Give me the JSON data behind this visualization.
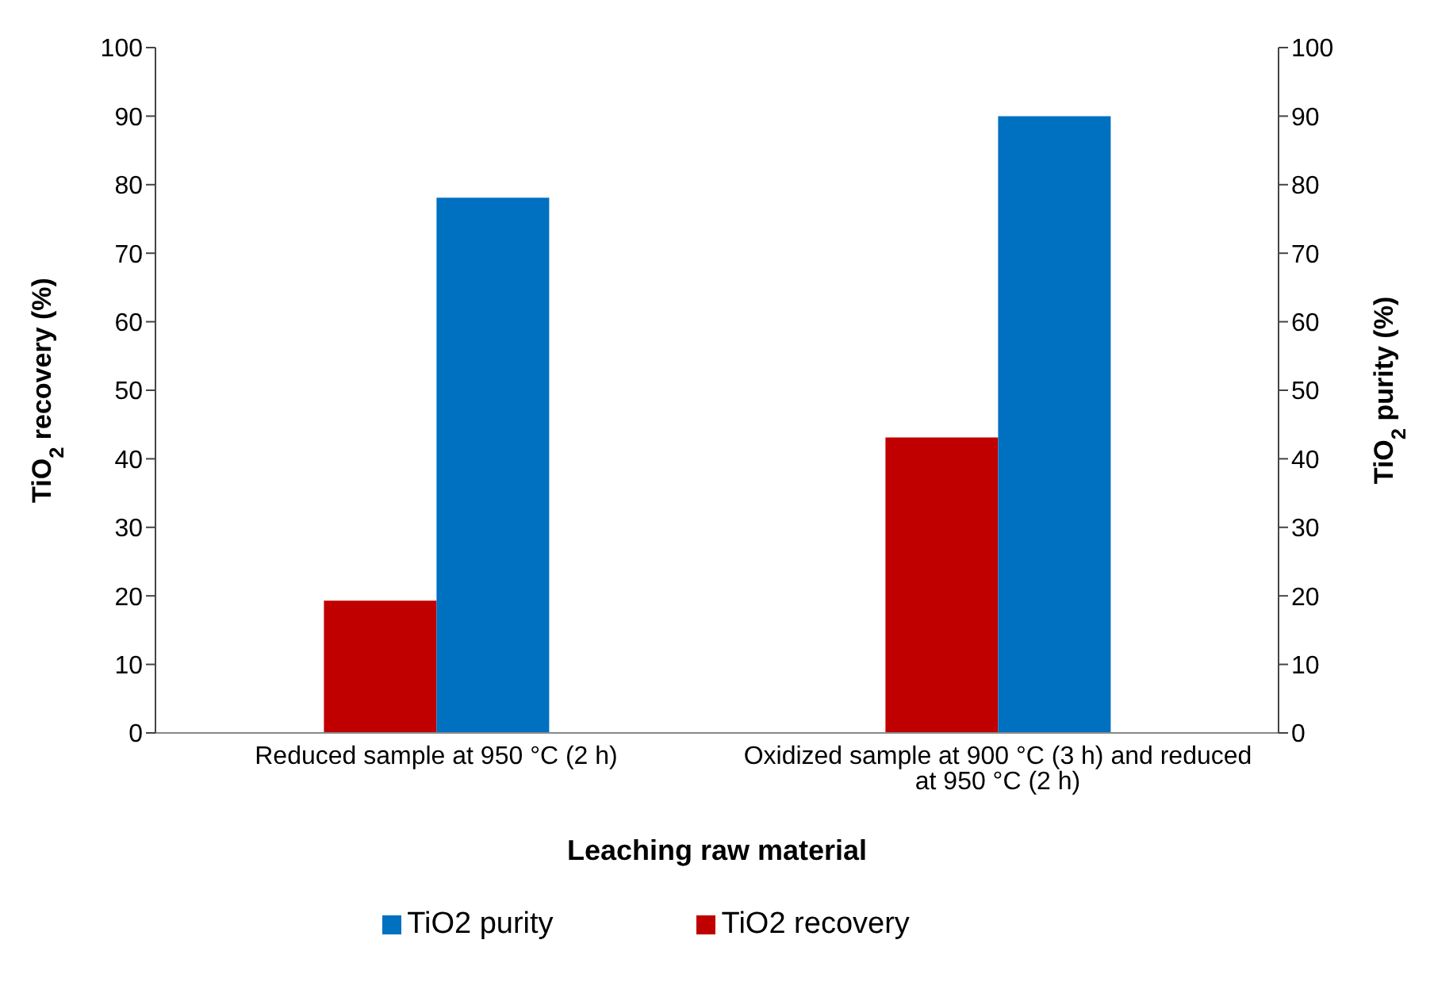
{
  "chart_data": {
    "type": "bar",
    "xlabel": "Leaching raw material",
    "ylabel": "TiO$_{2}$ recovery (%)",
    "y2label": "TiO$_{2}$ purity (%)",
    "categories": [
      "Reduced sample at 950 °C (2 h)",
      "Oxidized sample at 900 °C (3 h) and reduced at 950 °C (2 h)"
    ],
    "series": [
      {
        "name": "TiO2 recovery",
        "color": "#c00000",
        "values": [
          19.3,
          43.1
        ]
      },
      {
        "name": "TiO2 purity",
        "color": "#0070c0",
        "values": [
          78.1,
          90.0
        ],
        "axis": "y2"
      }
    ],
    "ylim": [
      0,
      100
    ],
    "yticks": [
      0,
      10,
      20,
      30,
      40,
      50,
      60,
      70,
      80,
      90,
      100
    ],
    "y2lim": [
      0,
      100
    ],
    "y2ticks": [
      0,
      10,
      20,
      30,
      40,
      50,
      60,
      70,
      80,
      90,
      100
    ],
    "grid": false,
    "legend": "bottom"
  }
}
